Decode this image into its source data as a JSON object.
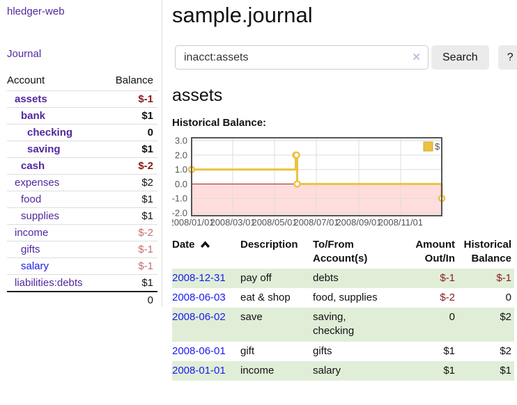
{
  "app": {
    "title": "hledger-web",
    "nav_journal": "Journal"
  },
  "sidebar": {
    "col_account": "Account",
    "col_balance": "Balance",
    "accounts": [
      {
        "name": "assets",
        "indent": 1,
        "bold": true,
        "balance": "$-1",
        "neg": "strong"
      },
      {
        "name": "bank",
        "indent": 2,
        "bold": true,
        "balance": "$1"
      },
      {
        "name": "checking",
        "indent": 3,
        "bold": true,
        "balance": "0"
      },
      {
        "name": "saving",
        "indent": 3,
        "bold": true,
        "balance": "$1"
      },
      {
        "name": "cash",
        "indent": 2,
        "bold": true,
        "balance": "$-2",
        "neg": "strong"
      },
      {
        "name": "expenses",
        "indent": 1,
        "bold": false,
        "balance": "$2"
      },
      {
        "name": "food",
        "indent": 2,
        "bold": false,
        "balance": "$1"
      },
      {
        "name": "supplies",
        "indent": 2,
        "bold": false,
        "balance": "$1"
      },
      {
        "name": "income",
        "indent": 1,
        "bold": false,
        "balance": "$-2",
        "neg": "soft"
      },
      {
        "name": "gifts",
        "indent": 2,
        "bold": false,
        "balance": "$-1",
        "neg": "soft"
      },
      {
        "name": "salary",
        "indent": 2,
        "bold": false,
        "balance": "$-1",
        "neg": "soft",
        "link": "blue"
      },
      {
        "name": "liabilities:debts",
        "indent": 1,
        "bold": false,
        "balance": "$1"
      }
    ],
    "total": "0"
  },
  "header": {
    "title": "sample.journal"
  },
  "search": {
    "value": "inacct:assets",
    "clear_icon": "✕",
    "button": "Search",
    "help_button": "?"
  },
  "account_page": {
    "heading": "assets",
    "chart_heading": "Historical Balance:"
  },
  "chart_data": {
    "type": "line",
    "title": "Historical Balance:",
    "x_type": "date",
    "xlim_days": [
      0,
      365
    ],
    "ylim": [
      -2.2,
      3.2
    ],
    "y_ticks": [
      3.0,
      2.0,
      1.0,
      0.0,
      -1.0,
      -2.0
    ],
    "x_ticks": [
      {
        "label": "2008/01/01",
        "day": 0
      },
      {
        "label": "2008/03/01",
        "day": 60
      },
      {
        "label": "2008/05/01",
        "day": 121
      },
      {
        "label": "2008/07/01",
        "day": 182
      },
      {
        "label": "2008/09/01",
        "day": 244
      },
      {
        "label": "2008/11/01",
        "day": 305
      }
    ],
    "series": [
      {
        "name": "$",
        "color": "#edc240",
        "steps": true,
        "points": [
          {
            "date": "2008-01-01",
            "day": 0,
            "value": 1
          },
          {
            "date": "2008-06-01",
            "day": 152,
            "value": 2
          },
          {
            "date": "2008-06-02",
            "day": 153,
            "value": 2
          },
          {
            "date": "2008-06-03",
            "day": 154,
            "value": 0
          },
          {
            "date": "2008-12-31",
            "day": 365,
            "value": -1
          }
        ]
      }
    ],
    "grid": {
      "border_color": "#545454",
      "tick_color": "#dddddd",
      "tick_text_color": "#545454"
    },
    "negative_region_fill": "#ffdddd",
    "zero_line_color": "#9c1c1c",
    "legend_position": "top-right"
  },
  "register": {
    "columns": [
      "Date",
      "Description",
      "To/From\nAccount(s)",
      "Amount\nOut/In",
      "Historical\nBalance"
    ],
    "sort": "date-ascending",
    "rows": [
      {
        "date": "2008-12-31",
        "description": "pay off",
        "accounts": "debts",
        "amount": "$-1",
        "amount_negative": true,
        "balance": "$-1",
        "balance_negative": true
      },
      {
        "date": "2008-06-03",
        "description": "eat & shop",
        "accounts": "food, supplies",
        "amount": "$-2",
        "amount_negative": true,
        "balance": "0",
        "balance_negative": false
      },
      {
        "date": "2008-06-02",
        "description": "save",
        "accounts": "saving,\nchecking",
        "amount": "0",
        "amount_negative": false,
        "balance": "$2",
        "balance_negative": false
      },
      {
        "date": "2008-06-01",
        "description": "gift",
        "accounts": "gifts",
        "amount": "$1",
        "amount_negative": false,
        "balance": "$2",
        "balance_negative": false
      },
      {
        "date": "2008-01-01",
        "description": "income",
        "accounts": "salary",
        "amount": "$1",
        "amount_negative": false,
        "balance": "$1",
        "balance_negative": false
      }
    ]
  }
}
